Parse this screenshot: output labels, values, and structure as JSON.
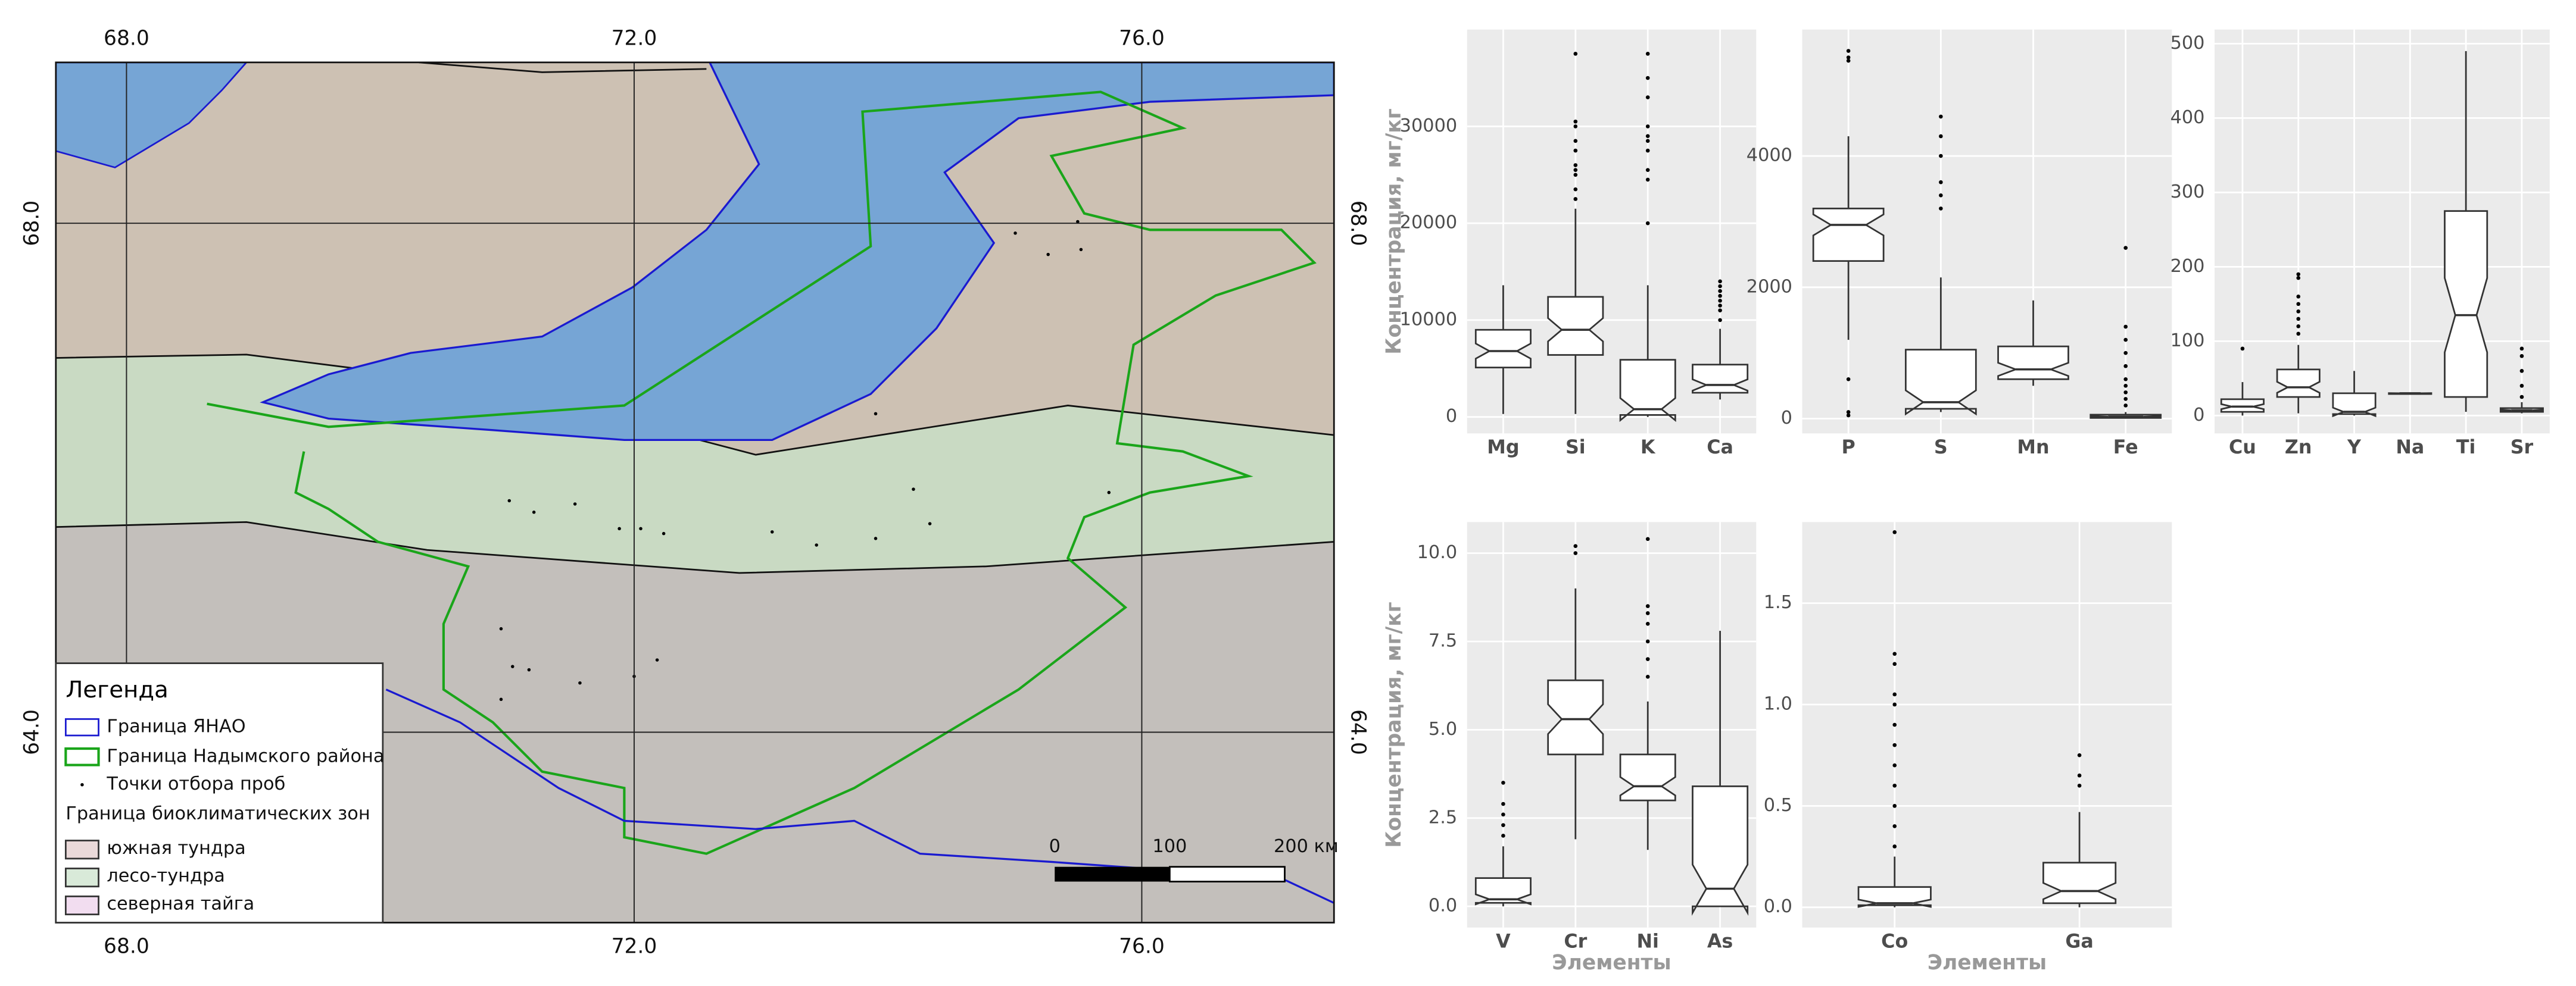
{
  "map": {
    "lon_labels": [
      "68.0",
      "72.0",
      "76.0"
    ],
    "lat_labels": [
      "68.0",
      "64.0"
    ],
    "legend": {
      "title": "Легенда",
      "items": [
        "Граница ЯНАО",
        "Граница Надымского района",
        "Точки отбора проб"
      ],
      "zones_title": "Граница биоклиматических зон",
      "zones": [
        "южная тундра",
        "лесо-тундра",
        "северная тайга"
      ]
    },
    "scale": [
      "0",
      "100",
      "200 км"
    ]
  },
  "chart_data": [
    {
      "type": "box",
      "y_label": "Концентрация, мг/кг",
      "categories": [
        "Mg",
        "Si",
        "K",
        "Ca"
      ],
      "ylim": [
        -1700,
        40000
      ],
      "yticks": [
        0,
        10000,
        20000,
        30000
      ],
      "grid": true,
      "boxes": [
        {
          "min": 300,
          "q1": 5100,
          "median": 6800,
          "q3": 9000,
          "max": 13600,
          "outliers": []
        },
        {
          "min": 300,
          "q1": 6400,
          "median": 9000,
          "q3": 12400,
          "max": 21500,
          "outliers": [
            22500,
            23500,
            25000,
            25500,
            26000,
            27500,
            28500,
            30000,
            30500,
            37500
          ]
        },
        {
          "min": 0,
          "q1": 200,
          "median": 800,
          "q3": 5900,
          "max": 13600,
          "outliers": [
            20000,
            24500,
            25500,
            27500,
            28500,
            29000,
            30000,
            33000,
            35000,
            37500
          ]
        },
        {
          "min": 1800,
          "q1": 2500,
          "median": 3300,
          "q3": 5400,
          "max": 9100,
          "outliers": [
            10000,
            11000,
            11500,
            12000,
            12500,
            13000,
            13500,
            14000
          ]
        }
      ]
    },
    {
      "type": "box",
      "categories": [
        "P",
        "S",
        "Mn",
        "Fe"
      ],
      "ylim": [
        -225,
        5925
      ],
      "yticks": [
        0,
        2000,
        4000
      ],
      "grid": true,
      "boxes": [
        {
          "min": 1200,
          "q1": 2400,
          "median": 2950,
          "q3": 3200,
          "max": 4300,
          "outliers": [
            5600,
            5500,
            5450,
            600,
            100,
            50
          ]
        },
        {
          "min": 100,
          "q1": 150,
          "median": 250,
          "q3": 1050,
          "max": 2150,
          "outliers": [
            3200,
            3400,
            3600,
            4000,
            4300,
            4600
          ]
        },
        {
          "min": 500,
          "q1": 600,
          "median": 750,
          "q3": 1100,
          "max": 1800,
          "outliers": []
        },
        {
          "min": 0,
          "q1": 10,
          "median": 30,
          "q3": 60,
          "max": 100,
          "outliers": [
            200,
            300,
            400,
            500,
            600,
            800,
            1000,
            1200,
            1400,
            2600
          ]
        }
      ]
    },
    {
      "type": "box",
      "categories": [
        "Cu",
        "Zn",
        "Y",
        "Na",
        "Ti",
        "Sr"
      ],
      "ylim": [
        -24,
        519
      ],
      "yticks": [
        0,
        100,
        200,
        300,
        400,
        500
      ],
      "grid": true,
      "boxes": [
        {
          "min": 0,
          "q1": 5,
          "median": 12,
          "q3": 22,
          "max": 45,
          "outliers": [
            90
          ]
        },
        {
          "min": 3,
          "q1": 25,
          "median": 38,
          "q3": 62,
          "max": 95,
          "outliers": [
            110,
            120,
            130,
            140,
            150,
            160,
            185,
            190
          ]
        },
        {
          "min": 0,
          "q1": 2,
          "median": 5,
          "q3": 30,
          "max": 60,
          "outliers": []
        },
        {
          "min": 28,
          "q1": 29,
          "median": 30,
          "q3": 30,
          "max": 31,
          "outliers": []
        },
        {
          "min": 5,
          "q1": 25,
          "median": 135,
          "q3": 275,
          "max": 490,
          "outliers": []
        },
        {
          "min": 3,
          "q1": 5,
          "median": 7,
          "q3": 10,
          "max": 18,
          "outliers": [
            25,
            40,
            60,
            80,
            90
          ]
        }
      ]
    },
    {
      "type": "box",
      "y_label": "Концентрация, мг/кг",
      "x_label": "Элементы",
      "categories": [
        "V",
        "Cr",
        "Ni",
        "As"
      ],
      "ylim": [
        -0.6,
        10.88
      ],
      "yticks": [
        {
          "value": 0,
          "label": "0.0"
        },
        {
          "value": 2.5,
          "label": "2.5"
        },
        {
          "value": 5,
          "label": "5.0"
        },
        {
          "value": 7.5,
          "label": "7.5"
        },
        {
          "value": 10,
          "label": "10.0"
        }
      ],
      "grid": true,
      "boxes": [
        {
          "min": 0,
          "q1": 0.1,
          "median": 0.2,
          "q3": 0.8,
          "max": 1.7,
          "outliers": [
            2.0,
            2.3,
            2.6,
            2.9,
            3.5
          ]
        },
        {
          "min": 1.9,
          "q1": 4.3,
          "median": 5.3,
          "q3": 6.4,
          "max": 9.0,
          "outliers": [
            10.0,
            10.2
          ]
        },
        {
          "min": 1.6,
          "q1": 3.0,
          "median": 3.4,
          "q3": 4.3,
          "max": 5.8,
          "outliers": [
            6.5,
            7.0,
            7.5,
            8.0,
            8.3,
            8.5,
            10.4
          ]
        },
        {
          "min": 0,
          "q1": 0.0,
          "median": 0.5,
          "q3": 3.4,
          "max": 7.8,
          "outliers": []
        }
      ]
    },
    {
      "type": "box",
      "x_label": "Элементы",
      "categories": [
        "Co",
        "Ga"
      ],
      "ylim": [
        -0.1,
        1.9
      ],
      "yticks": [
        {
          "value": 0,
          "label": "0.0"
        },
        {
          "value": 0.5,
          "label": "0.5"
        },
        {
          "value": 1,
          "label": "1.0"
        },
        {
          "value": 1.5,
          "label": "1.5"
        }
      ],
      "grid": true,
      "boxes": [
        {
          "min": 0,
          "q1": 0.01,
          "median": 0.02,
          "q3": 0.1,
          "max": 0.25,
          "outliers": [
            0.3,
            0.4,
            0.5,
            0.6,
            0.7,
            0.8,
            0.9,
            1.0,
            1.05,
            1.2,
            1.25,
            1.85
          ]
        },
        {
          "min": 0,
          "q1": 0.02,
          "median": 0.08,
          "q3": 0.22,
          "max": 0.47,
          "outliers": [
            0.6,
            0.65,
            0.75
          ]
        }
      ]
    }
  ]
}
